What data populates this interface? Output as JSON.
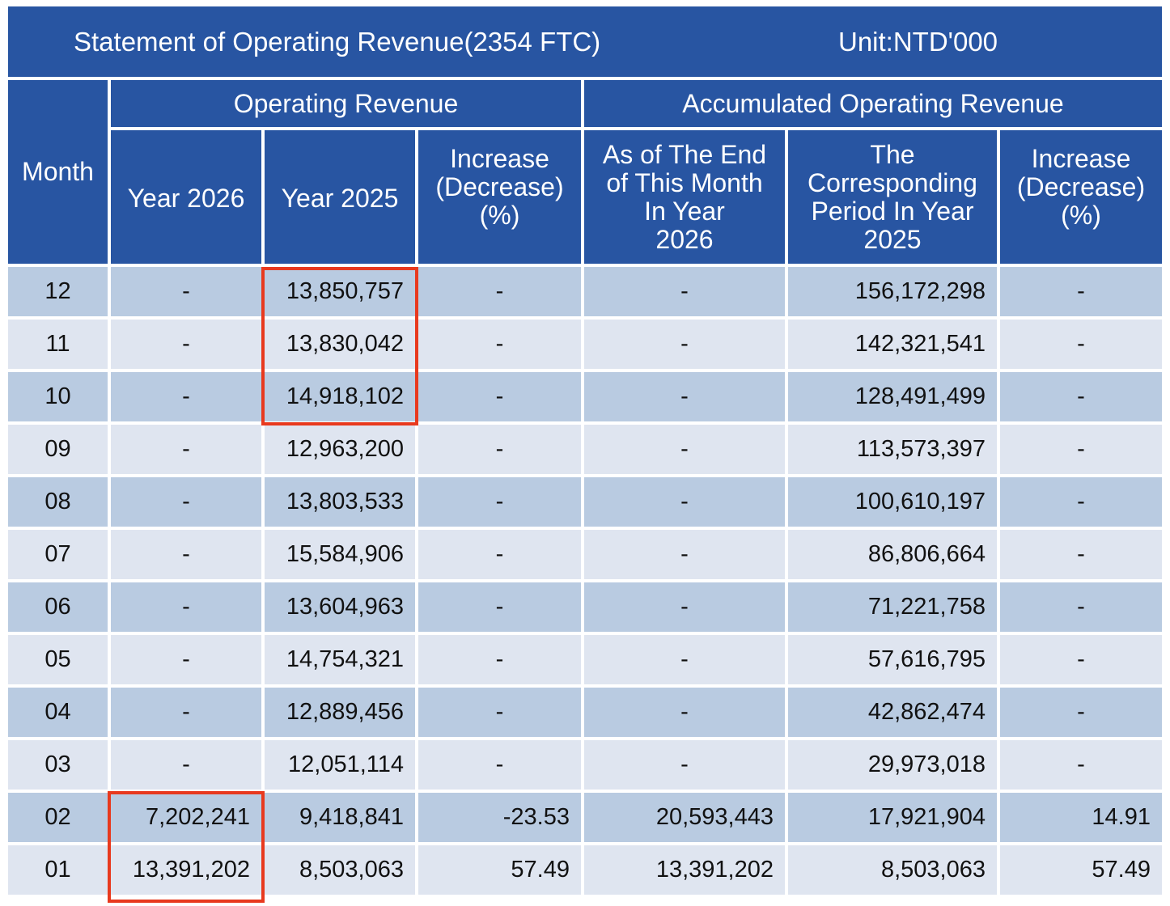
{
  "title": "Statement of Operating Revenue(2354 FTC)",
  "unit": "Unit:NTD'000",
  "headers": {
    "month": "Month",
    "operating_revenue": "Operating Revenue",
    "accumulated": "Accumulated Operating Revenue",
    "year_2026": "Year 2026",
    "year_2025": "Year 2025",
    "increase_lines": [
      "Increase",
      "(Decrease)",
      "(%)"
    ],
    "as_of_lines": [
      "As of The End",
      "of This Month",
      "In Year",
      "2026"
    ],
    "corresponding_lines": [
      "The",
      "Corresponding",
      "Period In Year",
      "2025"
    ],
    "acc_increase_lines": [
      "Increase",
      "(Decrease)",
      "(%)"
    ]
  },
  "rows": [
    {
      "month": "12",
      "y2026": "-",
      "y2025": "13,850,757",
      "pct": "-",
      "acc2026": "-",
      "acc2025": "156,172,298",
      "acc_pct": "-"
    },
    {
      "month": "11",
      "y2026": "-",
      "y2025": "13,830,042",
      "pct": "-",
      "acc2026": "-",
      "acc2025": "142,321,541",
      "acc_pct": "-"
    },
    {
      "month": "10",
      "y2026": "-",
      "y2025": "14,918,102",
      "pct": "-",
      "acc2026": "-",
      "acc2025": "128,491,499",
      "acc_pct": "-"
    },
    {
      "month": "09",
      "y2026": "-",
      "y2025": "12,963,200",
      "pct": "-",
      "acc2026": "-",
      "acc2025": "113,573,397",
      "acc_pct": "-"
    },
    {
      "month": "08",
      "y2026": "-",
      "y2025": "13,803,533",
      "pct": "-",
      "acc2026": "-",
      "acc2025": "100,610,197",
      "acc_pct": "-"
    },
    {
      "month": "07",
      "y2026": "-",
      "y2025": "15,584,906",
      "pct": "-",
      "acc2026": "-",
      "acc2025": "86,806,664",
      "acc_pct": "-"
    },
    {
      "month": "06",
      "y2026": "-",
      "y2025": "13,604,963",
      "pct": "-",
      "acc2026": "-",
      "acc2025": "71,221,758",
      "acc_pct": "-"
    },
    {
      "month": "05",
      "y2026": "-",
      "y2025": "14,754,321",
      "pct": "-",
      "acc2026": "-",
      "acc2025": "57,616,795",
      "acc_pct": "-"
    },
    {
      "month": "04",
      "y2026": "-",
      "y2025": "12,889,456",
      "pct": "-",
      "acc2026": "-",
      "acc2025": "42,862,474",
      "acc_pct": "-"
    },
    {
      "month": "03",
      "y2026": "-",
      "y2025": "12,051,114",
      "pct": "-",
      "acc2026": "-",
      "acc2025": "29,973,018",
      "acc_pct": "-"
    },
    {
      "month": "02",
      "y2026": "7,202,241",
      "y2025": "9,418,841",
      "pct": "-23.53",
      "acc2026": "20,593,443",
      "acc2025": "17,921,904",
      "acc_pct": "14.91"
    },
    {
      "month": "01",
      "y2026": "13,391,202",
      "y2025": "8,503,063",
      "pct": "57.49",
      "acc2026": "13,391,202",
      "acc2025": "8,503,063",
      "acc_pct": "57.49"
    }
  ],
  "colors": {
    "header_bg": "#2855a2",
    "row_dark": "#b9cbe1",
    "row_light": "#dfe5f0",
    "highlight_box": "#e8391e"
  }
}
